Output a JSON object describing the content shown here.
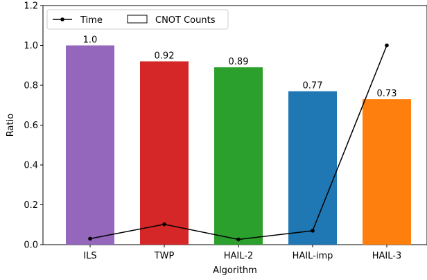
{
  "chart_data": {
    "type": "bar",
    "categories": [
      "ILS",
      "TWP",
      "HAIL-2",
      "HAIL-imp",
      "HAIL-3"
    ],
    "series": [
      {
        "name": "CNOT Counts",
        "kind": "bar",
        "values": [
          1.0,
          0.92,
          0.89,
          0.77,
          0.73
        ],
        "data_labels": [
          "1.0",
          "0.92",
          "0.89",
          "0.77",
          "0.73"
        ],
        "colors": [
          "#9467bd",
          "#d62728",
          "#2ca02c",
          "#1f77b4",
          "#ff7f0e"
        ]
      },
      {
        "name": "Time",
        "kind": "line",
        "values": [
          0.03,
          0.102,
          0.026,
          0.07,
          1.0
        ],
        "color": "#000000"
      }
    ],
    "xlabel": "Algorithm",
    "ylabel": "Ratio",
    "ylim": [
      0,
      1.2
    ],
    "yticks": [
      0.0,
      0.2,
      0.4,
      0.6,
      0.8,
      1.0,
      1.2
    ],
    "ytick_labels": [
      "0.0",
      "0.2",
      "0.4",
      "0.6",
      "0.8",
      "1.0",
      "1.2"
    ],
    "grid": false,
    "legend": {
      "placement": "top-left",
      "entries": [
        "Time",
        "CNOT Counts"
      ]
    }
  }
}
